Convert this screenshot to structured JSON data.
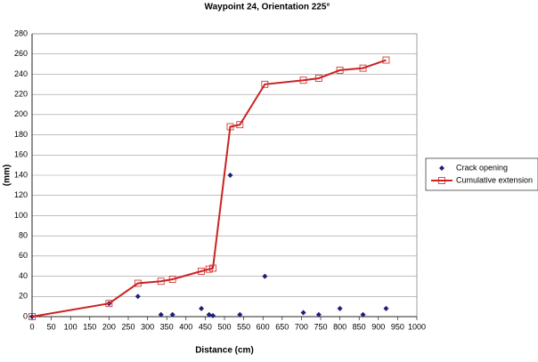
{
  "chart_data": {
    "type": "scatter",
    "title": "Waypoint 24, Orientation 225°",
    "x_label": "Distance (cm)",
    "y_label": "(mm)",
    "x": [
      0,
      200,
      275,
      335,
      365,
      440,
      460,
      470,
      515,
      540,
      605,
      705,
      745,
      800,
      860,
      920
    ],
    "series": [
      {
        "name": "Crack opening",
        "type": "scatter",
        "color": "#1f1f7a",
        "values": [
          0,
          13,
          20,
          2,
          2,
          8,
          2,
          1,
          140,
          2,
          40,
          4,
          2,
          8,
          2,
          8
        ]
      },
      {
        "name": "Cumulative extension",
        "type": "line",
        "color": "#cc2222",
        "values": [
          0,
          13,
          33,
          35,
          37,
          45,
          47,
          48,
          188,
          190,
          230,
          234,
          236,
          244,
          246,
          254
        ]
      }
    ],
    "xlim": [
      0,
      1000
    ],
    "xticks": [
      0,
      50,
      100,
      150,
      200,
      250,
      300,
      350,
      400,
      450,
      500,
      550,
      600,
      650,
      700,
      750,
      800,
      850,
      900,
      950,
      1000
    ],
    "ylim": [
      0,
      280
    ],
    "yticks": [
      0,
      20,
      40,
      60,
      80,
      100,
      120,
      140,
      160,
      180,
      200,
      220,
      240,
      260,
      280
    ],
    "grid": true,
    "legend": "right"
  }
}
